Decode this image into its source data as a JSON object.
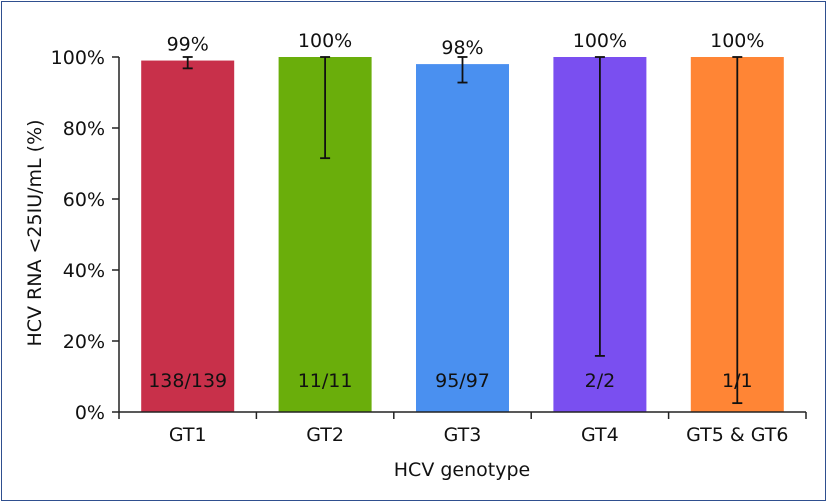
{
  "chart_data": {
    "type": "bar",
    "title": "",
    "xlabel": "HCV genotype",
    "ylabel": "HCV RNA <25IU/mL (%)",
    "ylim": [
      0,
      100
    ],
    "yticks": [
      "0%",
      "20%",
      "40%",
      "60%",
      "80%",
      "100%"
    ],
    "grid": false,
    "categories": [
      "GT1",
      "GT2",
      "GT3",
      "GT4",
      "GT5 & GT6"
    ],
    "values": [
      99,
      100,
      98,
      100,
      100
    ],
    "value_labels": [
      "99%",
      "100%",
      "98%",
      "100%",
      "100%"
    ],
    "counts": [
      "138/139",
      "11/11",
      "95/97",
      "2/2",
      "1/1"
    ],
    "error_low": [
      96.8,
      71.5,
      92.8,
      15.8,
      2.5
    ],
    "error_high": [
      100,
      100,
      100,
      100,
      100
    ],
    "colors": [
      "#c8304a",
      "#6aae0b",
      "#4a90f0",
      "#7a4ff0",
      "#ff8535"
    ]
  }
}
